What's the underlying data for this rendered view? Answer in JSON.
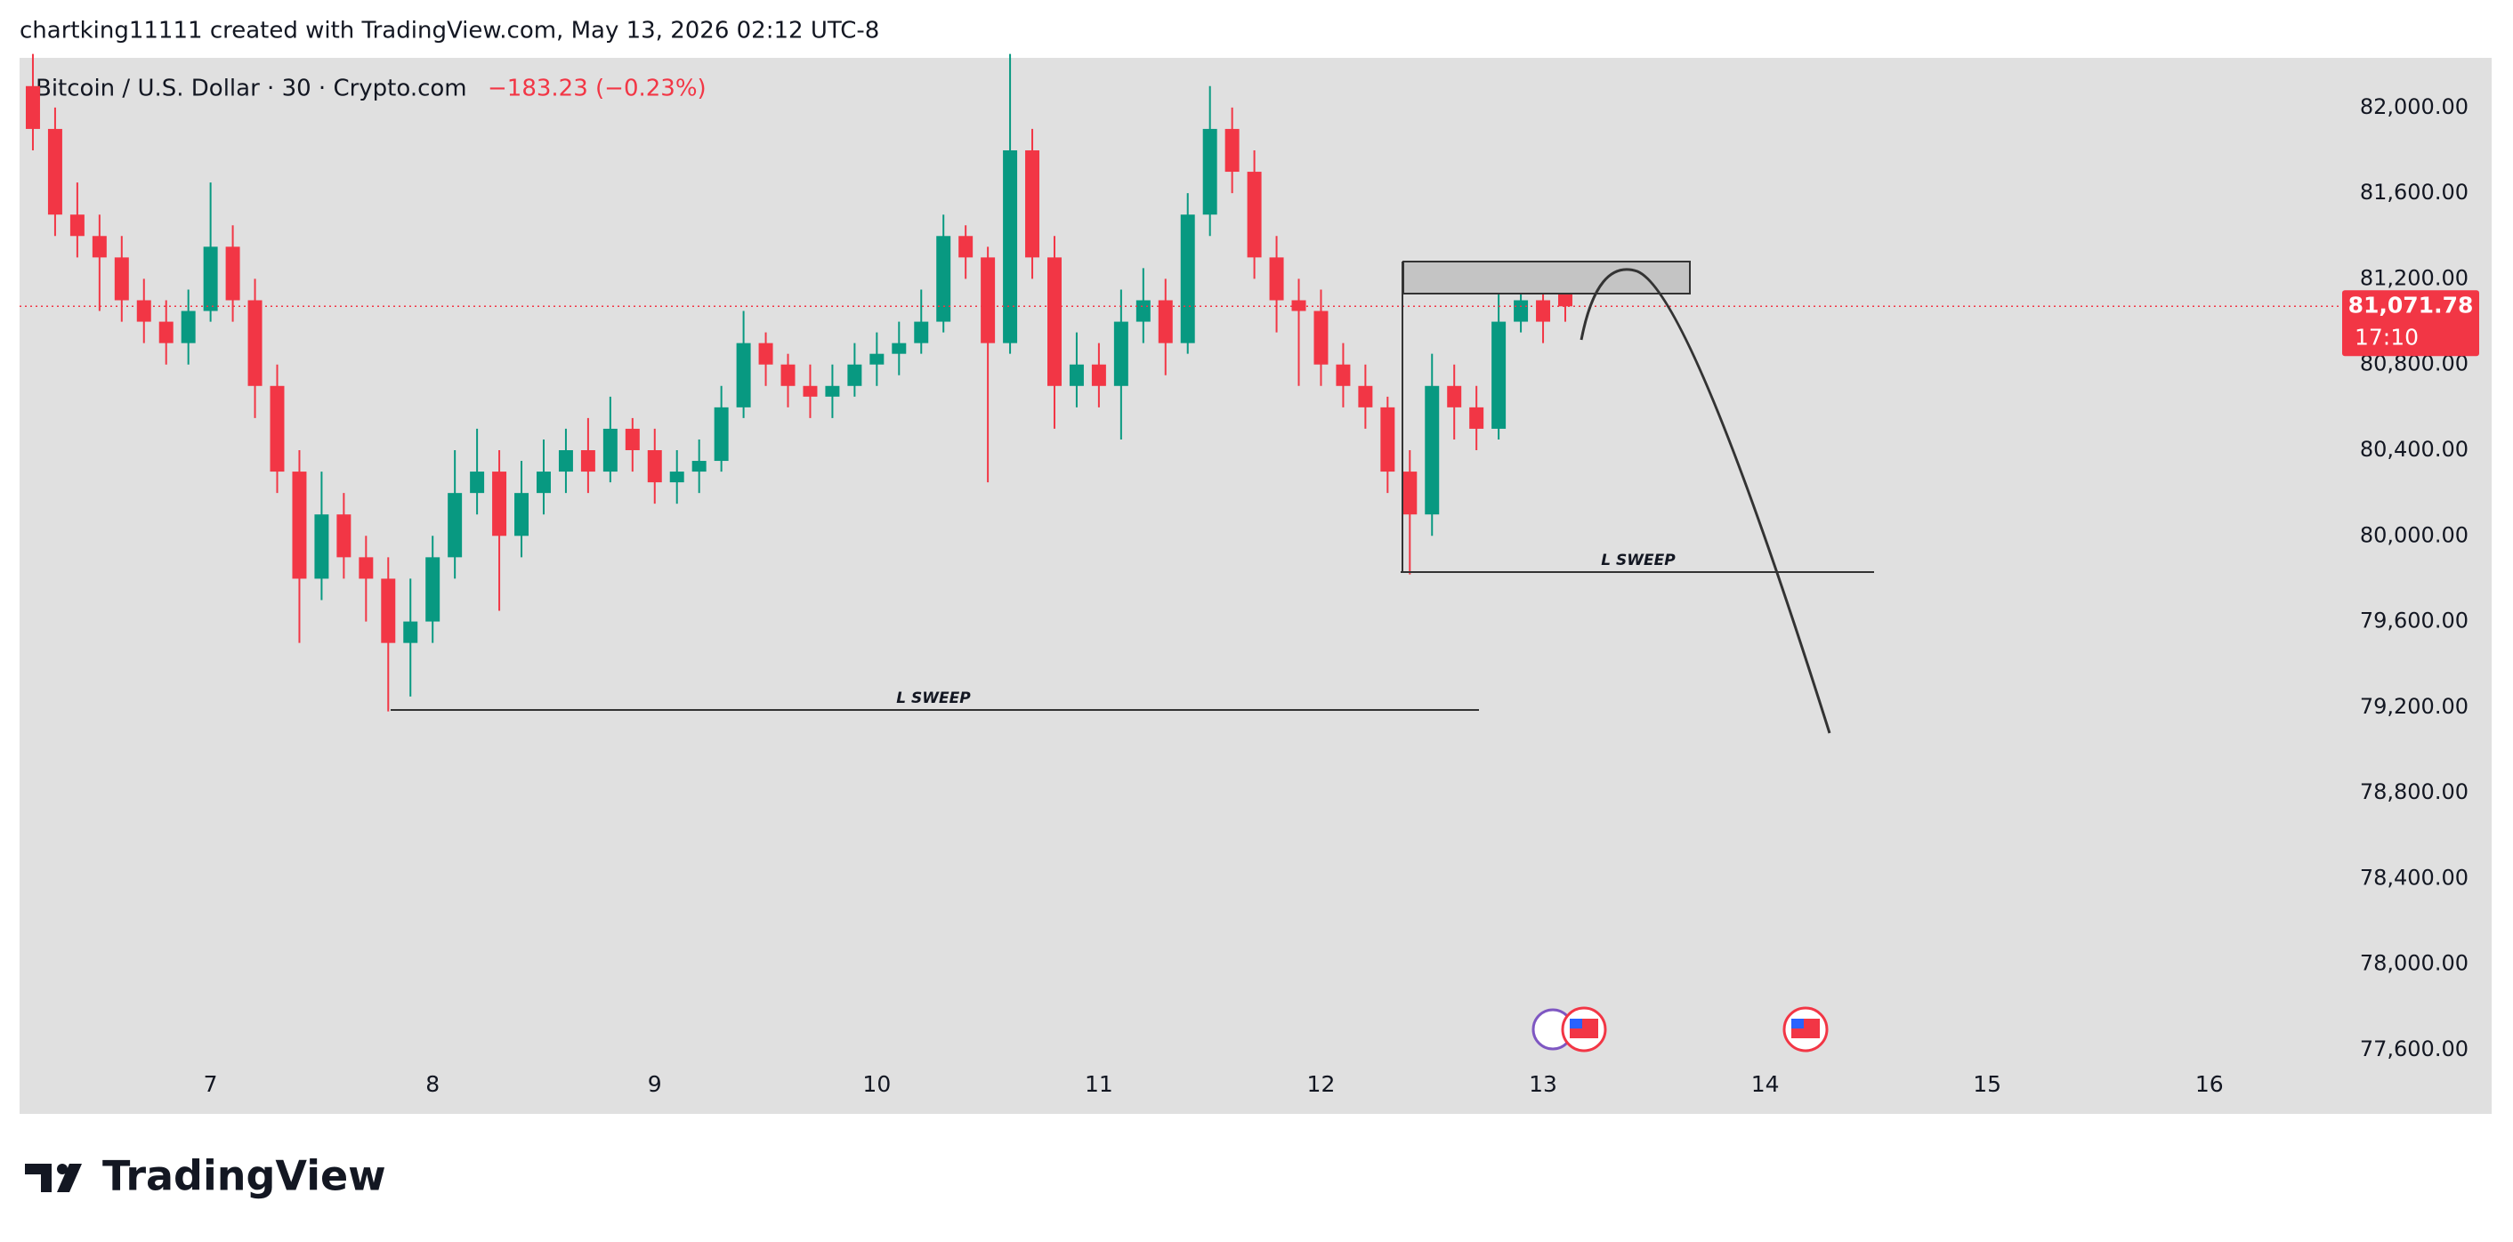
{
  "chart_data": {
    "type": "candlestick",
    "attribution": "chartking11111 created with TradingView.com, May 13, 2026 02:12 UTC-8",
    "title": "Bitcoin / U.S. Dollar · 30 · Crypto.com",
    "subtitle": "−183.23 (−0.23%)",
    "brand": "TradingView",
    "annotations": [
      "L SWEEP",
      "L SWEEP"
    ],
    "countdown": "17:10",
    "last_price": {
      "value": 81071.78,
      "label": "81,071.78"
    },
    "up_color": "#089981",
    "down_color": "#f23645",
    "x": [
      6.2,
      6.3,
      6.4,
      6.5,
      6.6,
      6.7,
      6.8,
      6.9,
      7.0,
      7.1,
      7.2,
      7.3,
      7.4,
      7.5,
      7.6,
      7.7,
      7.8,
      7.9,
      8.0,
      8.1,
      8.2,
      8.3,
      8.4,
      8.5,
      8.6,
      8.7,
      8.8,
      8.9,
      9.0,
      9.1,
      9.2,
      9.3,
      9.4,
      9.5,
      9.6,
      9.7,
      9.8,
      9.9,
      10.0,
      10.1,
      10.2,
      10.3,
      10.4,
      10.5,
      10.6,
      10.7,
      10.8,
      10.9,
      11.0,
      11.1,
      11.2,
      11.3,
      11.4,
      11.5,
      11.6,
      11.7,
      11.8,
      11.9,
      12.0,
      12.1,
      12.2,
      12.3,
      12.4,
      12.5,
      12.6,
      12.7,
      12.8,
      12.9,
      13.0,
      13.1
    ],
    "open": [
      82100,
      81900,
      81500,
      81400,
      81300,
      81100,
      81000,
      80900,
      81050,
      81350,
      81100,
      80700,
      80300,
      79800,
      80100,
      79900,
      79800,
      79500,
      79600,
      79900,
      80200,
      80300,
      80000,
      80200,
      80300,
      80400,
      80300,
      80500,
      80400,
      80250,
      80300,
      80350,
      80600,
      80900,
      80800,
      80700,
      80650,
      80700,
      80800,
      80850,
      80900,
      81000,
      81400,
      81300,
      80900,
      81800,
      81300,
      80700,
      80800,
      80700,
      81000,
      81100,
      80900,
      81500,
      81900,
      81700,
      81300,
      81100,
      81050,
      80800,
      80700,
      80600,
      80300,
      80100,
      80700,
      80600,
      80500,
      81000,
      81100,
      81250
    ],
    "high": [
      82250,
      82000,
      81650,
      81500,
      81400,
      81200,
      81100,
      81150,
      81650,
      81450,
      81200,
      80800,
      80400,
      80300,
      80200,
      80000,
      79900,
      79800,
      80000,
      80400,
      80500,
      80400,
      80350,
      80450,
      80500,
      80550,
      80650,
      80550,
      80500,
      80400,
      80450,
      80700,
      81050,
      80950,
      80850,
      80800,
      80800,
      80900,
      80950,
      81000,
      81150,
      81500,
      81450,
      81350,
      82250,
      81900,
      81400,
      80950,
      80900,
      81150,
      81250,
      81200,
      81600,
      82100,
      82000,
      81800,
      81400,
      81200,
      81150,
      80900,
      80800,
      80650,
      80400,
      80850,
      80800,
      80700,
      81150,
      81280,
      81250,
      81280
    ],
    "low": [
      81800,
      81400,
      81300,
      81050,
      81000,
      80900,
      80800,
      80800,
      81000,
      81000,
      80550,
      80200,
      79500,
      79700,
      79800,
      79600,
      79180,
      79250,
      79500,
      79800,
      80100,
      79650,
      79900,
      80100,
      80200,
      80200,
      80250,
      80300,
      80150,
      80150,
      80200,
      80300,
      80550,
      80700,
      80600,
      80550,
      80550,
      80650,
      80700,
      80750,
      80850,
      80950,
      81200,
      80250,
      80850,
      81200,
      80500,
      80600,
      80600,
      80450,
      80900,
      80750,
      80850,
      81400,
      81600,
      81200,
      80950,
      80700,
      80700,
      80600,
      80500,
      80200,
      79820,
      80000,
      80450,
      80400,
      80450,
      80950,
      80900,
      81000
    ],
    "close": [
      81900,
      81500,
      81400,
      81300,
      81100,
      81000,
      80900,
      81050,
      81350,
      81100,
      80700,
      80300,
      79800,
      80100,
      79900,
      79800,
      79500,
      79600,
      79900,
      80200,
      80300,
      80000,
      80200,
      80300,
      80400,
      80300,
      80500,
      80400,
      80250,
      80300,
      80350,
      80600,
      80900,
      80800,
      80700,
      80650,
      80700,
      80800,
      80850,
      80900,
      81000,
      81400,
      81300,
      80900,
      81800,
      81300,
      80700,
      80800,
      80700,
      81000,
      81100,
      80900,
      81500,
      81900,
      81700,
      81300,
      81100,
      81050,
      80800,
      80700,
      80600,
      80300,
      80100,
      80700,
      80600,
      80500,
      81000,
      81100,
      81000,
      81071.78
    ],
    "xlim": [
      6.14,
      16.55
    ],
    "xticks": [
      7,
      8,
      9,
      10,
      11,
      12,
      13,
      14,
      15,
      16
    ],
    "ylim": [
      77301,
      82232
    ],
    "yticks": [
      {
        "value": 77600,
        "label": "77,600.00"
      },
      {
        "value": 78000,
        "label": "78,000.00"
      },
      {
        "value": 78400,
        "label": "78,400.00"
      },
      {
        "value": 78800,
        "label": "78,800.00"
      },
      {
        "value": 79200,
        "label": "79,200.00"
      },
      {
        "value": 79600,
        "label": "79,600.00"
      },
      {
        "value": 80000,
        "label": "80,000.00"
      },
      {
        "value": 80400,
        "label": "80,400.00"
      },
      {
        "value": 80800,
        "label": "80,800.00"
      },
      {
        "value": 81200,
        "label": "81,200.00"
      },
      {
        "value": 81600,
        "label": "81,600.00"
      },
      {
        "value": 82000,
        "label": "82,000.00"
      }
    ]
  }
}
